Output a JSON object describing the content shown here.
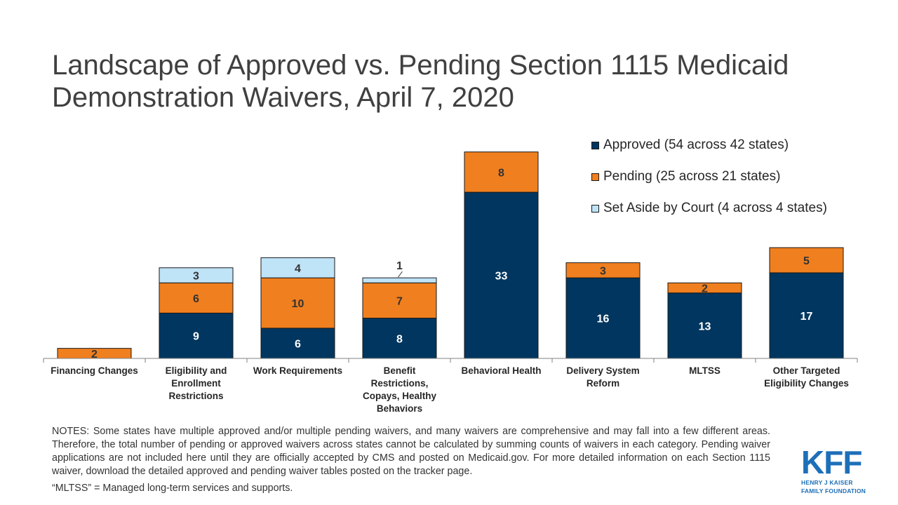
{
  "title": "Landscape of Approved vs. Pending Section 1115 Medicaid Demonstration Waivers, April 7, 2020",
  "colors": {
    "approved": "#00365f",
    "pending": "#f07f1f",
    "set_aside": "#bfe3f7",
    "approved_label": "#ffffff",
    "other_label": "#333333",
    "kff_blue": "#1d6fb8"
  },
  "legend": {
    "approved": "Approved (54 across 42 states)",
    "pending": "Pending (25 across 21 states)",
    "set_aside": "Set Aside by Court (4 across 4 states)"
  },
  "chart_data": {
    "type": "bar",
    "stacked": true,
    "title": "Landscape of Approved vs. Pending Section 1115 Medicaid Demonstration Waivers, April 7, 2020",
    "xlabel": "",
    "ylabel": "",
    "ylim": [
      0,
      45
    ],
    "grid": false,
    "legend_position": "top-right",
    "categories": [
      "Financing Changes",
      "Eligibility and Enrollment Restrictions",
      "Work Requirements",
      "Benefit Restrictions, Copays, Healthy Behaviors",
      "Behavioral Health",
      "Delivery System Reform",
      "MLTSS",
      "Other Targeted Eligibility Changes"
    ],
    "series": [
      {
        "name": "Approved (54 across 42 states)",
        "key": "approved",
        "values": [
          0,
          9,
          6,
          8,
          33,
          16,
          13,
          17
        ]
      },
      {
        "name": "Pending (25 across 21 states)",
        "key": "pending",
        "values": [
          2,
          6,
          10,
          7,
          8,
          3,
          2,
          5
        ]
      },
      {
        "name": "Set Aside by Court (4 across 4 states)",
        "key": "set_aside",
        "values": [
          0,
          3,
          4,
          1,
          0,
          0,
          0,
          0
        ]
      }
    ]
  },
  "notes": {
    "main": "NOTES: Some states have multiple approved and/or multiple pending waivers, and many waivers are comprehensive and may fall into a few different areas. Therefore, the total number of pending or approved waivers across states cannot be calculated by summing counts of waivers in each category. Pending waiver applications are not included here until they are officially accepted by CMS and posted on Medicaid.gov. For more detailed information on each Section 1115 waiver, download the detailed approved and pending waiver tables posted on the tracker page.",
    "abbr": "“MLTSS” = Managed long-term services and supports."
  },
  "logo": {
    "mark": "KFF",
    "line1": "HENRY J KAISER",
    "line2": "FAMILY FOUNDATION"
  }
}
